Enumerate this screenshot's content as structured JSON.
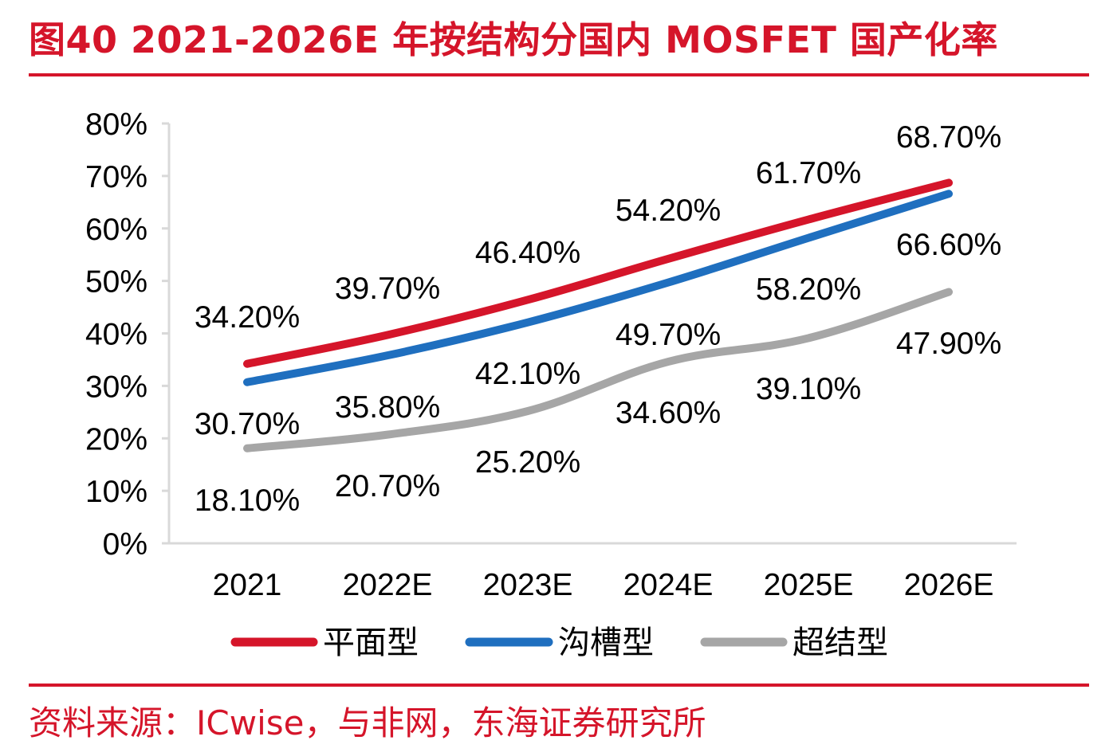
{
  "figure": {
    "title": "图40  2021-2026E 年按结构分国内 MOSFET 国产化率",
    "source": "资料来源：ICwise，与非网，东海证券研究所"
  },
  "colors": {
    "accent": "#d5152a",
    "planar": "#d5152a",
    "trench": "#1f6fbf",
    "superjunction": "#a6a6a6",
    "axis": "#d9d9d9"
  },
  "chart_data": {
    "type": "line",
    "categories": [
      "2021",
      "2022E",
      "2023E",
      "2024E",
      "2025E",
      "2026E"
    ],
    "y_ticks": [
      "0%",
      "10%",
      "20%",
      "30%",
      "40%",
      "50%",
      "60%",
      "70%",
      "80%"
    ],
    "ylim": [
      0,
      80
    ],
    "smooth": true,
    "grid": false,
    "legend_position": "bottom",
    "series": [
      {
        "name": "平面型",
        "color": "#d5152a",
        "values": [
          34.2,
          39.7,
          46.4,
          54.2,
          61.7,
          68.7
        ],
        "labels": [
          "34.20%",
          "39.70%",
          "46.40%",
          "54.20%",
          "61.70%",
          "68.70%"
        ]
      },
      {
        "name": "沟槽型",
        "color": "#1f6fbf",
        "values": [
          30.7,
          35.8,
          42.1,
          49.7,
          58.2,
          66.6
        ],
        "labels": [
          "30.70%",
          "35.80%",
          "42.10%",
          "49.70%",
          "58.20%",
          "66.60%"
        ]
      },
      {
        "name": "超结型",
        "color": "#a6a6a6",
        "values": [
          18.1,
          20.7,
          25.2,
          34.6,
          39.1,
          47.9
        ],
        "labels": [
          "18.10%",
          "20.70%",
          "25.20%",
          "34.60%",
          "39.10%",
          "47.90%"
        ]
      }
    ]
  }
}
